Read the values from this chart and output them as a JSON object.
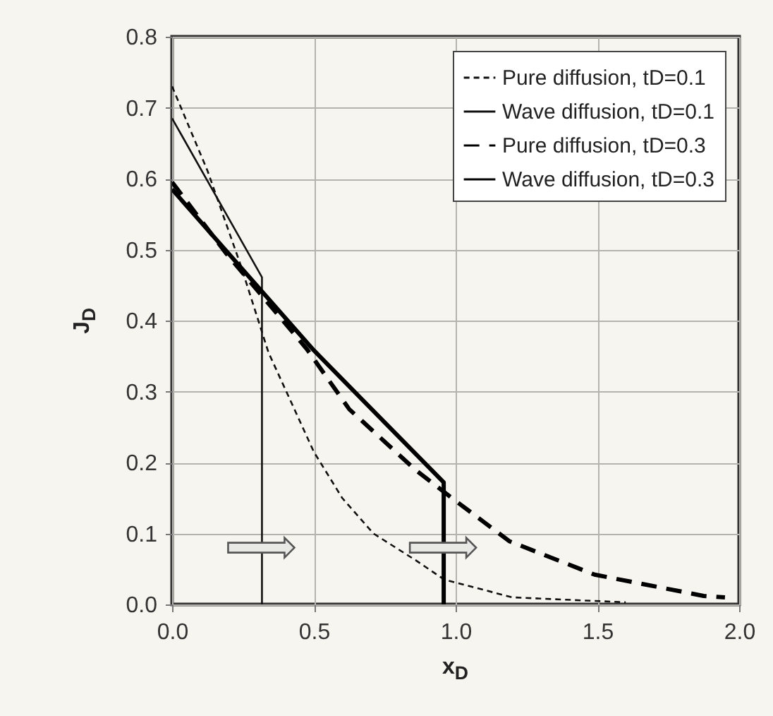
{
  "chart_data": {
    "type": "line",
    "xlabel": "x$_{D}$",
    "ylabel": "J$_{D}$",
    "xlim": [
      0,
      2
    ],
    "ylim": [
      0,
      0.8
    ],
    "xticks": [
      {
        "value": 0,
        "label": "0.0"
      },
      {
        "value": 0.5,
        "label": "0.5"
      },
      {
        "value": 1,
        "label": "1.0"
      },
      {
        "value": 1.5,
        "label": "1.5"
      },
      {
        "value": 2,
        "label": "2.0"
      }
    ],
    "yticks": [
      {
        "value": 0,
        "label": "0.0"
      },
      {
        "value": 0.1,
        "label": "0.1"
      },
      {
        "value": 0.2,
        "label": "0.2"
      },
      {
        "value": 0.3,
        "label": "0.3"
      },
      {
        "value": 0.4,
        "label": "0.4"
      },
      {
        "value": 0.5,
        "label": "0.5"
      },
      {
        "value": 0.6,
        "label": "0.6"
      },
      {
        "value": 0.7,
        "label": "0.7"
      },
      {
        "value": 0.8,
        "label": "0.8"
      }
    ],
    "grid": true,
    "legend": "top right",
    "series": [
      {
        "name": "Pure diffusion, tD=0.1",
        "color": "#111111",
        "line_style": "dashed",
        "x": [
          0,
          0.125,
          0.242,
          0.34,
          0.5,
          0.6,
          0.71,
          0.86,
          0.96,
          1.2,
          1.6
        ],
        "values": [
          0.73,
          0.611,
          0.478,
          0.355,
          0.215,
          0.15,
          0.1,
          0.062,
          0.035,
          0.01,
          0.003
        ]
      },
      {
        "name": "Wave diffusion, tD=0.1",
        "color": "#111111",
        "line_style": "solid",
        "x": [
          0,
          0.317,
          0.317
        ],
        "values": [
          0.685,
          0.461,
          0
        ]
      },
      {
        "name": "Pure diffusion, tD=0.3",
        "color": "#000000",
        "line_style": "dashed",
        "x": [
          0,
          0.19,
          0.475,
          0.625,
          0.86,
          0.99,
          1.19,
          1.49,
          1.875,
          1.95
        ],
        "values": [
          0.595,
          0.495,
          0.36,
          0.275,
          0.189,
          0.149,
          0.089,
          0.042,
          0.012,
          0.01
        ]
      },
      {
        "name": "Wave diffusion, tD=0.3",
        "color": "#000000",
        "line_style": "solid",
        "x": [
          0,
          0.5,
          0.958,
          0.958
        ],
        "values": [
          0.585,
          0.358,
          0.172,
          0
        ]
      }
    ]
  }
}
